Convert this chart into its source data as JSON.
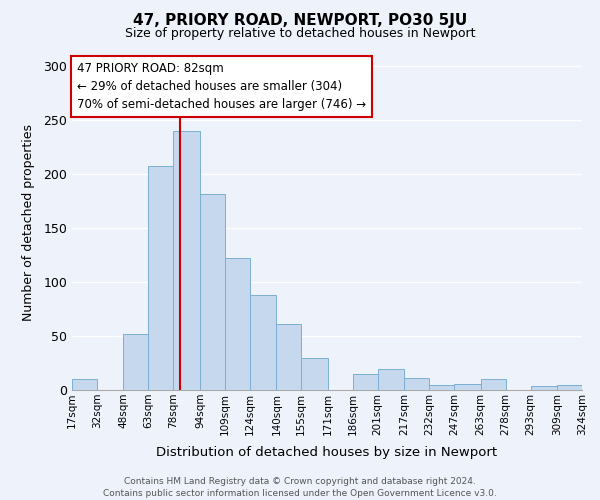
{
  "title": "47, PRIORY ROAD, NEWPORT, PO30 5JU",
  "subtitle": "Size of property relative to detached houses in Newport",
  "xlabel": "Distribution of detached houses by size in Newport",
  "ylabel": "Number of detached properties",
  "bar_color": "#c5d8ed",
  "bar_edge_color": "#7ab0d4",
  "vline_color": "#cc0000",
  "vline_x": 82,
  "categories": [
    "17sqm",
    "32sqm",
    "48sqm",
    "63sqm",
    "78sqm",
    "94sqm",
    "109sqm",
    "124sqm",
    "140sqm",
    "155sqm",
    "171sqm",
    "186sqm",
    "201sqm",
    "217sqm",
    "232sqm",
    "247sqm",
    "263sqm",
    "278sqm",
    "293sqm",
    "309sqm",
    "324sqm"
  ],
  "bin_edges": [
    17,
    32,
    48,
    63,
    78,
    94,
    109,
    124,
    140,
    155,
    171,
    186,
    201,
    217,
    232,
    247,
    263,
    278,
    293,
    309,
    324
  ],
  "values": [
    10,
    0,
    52,
    207,
    240,
    181,
    122,
    88,
    61,
    30,
    0,
    15,
    19,
    11,
    5,
    6,
    10,
    0,
    4,
    0,
    5
  ],
  "ylim": [
    0,
    310
  ],
  "yticks": [
    0,
    50,
    100,
    150,
    200,
    250,
    300
  ],
  "annotation_text": "47 PRIORY ROAD: 82sqm\n← 29% of detached houses are smaller (304)\n70% of semi-detached houses are larger (746) →",
  "annotation_box_color": "#ffffff",
  "annotation_box_edge": "#cc0000",
  "footer_line1": "Contains HM Land Registry data © Crown copyright and database right 2024.",
  "footer_line2": "Contains public sector information licensed under the Open Government Licence v3.0.",
  "background_color": "#eef2fa"
}
